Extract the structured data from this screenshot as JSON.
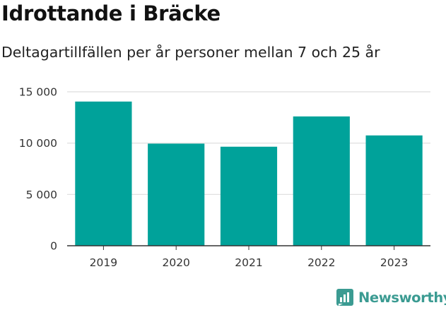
{
  "title": "Idrottande i Bräcke",
  "subtitle": "Deltagartillfällen per år personer mellan 7 och 25 år",
  "brand": {
    "name": "Newsworthy",
    "color": "#3b9b92",
    "icon": "newsworthy-chart-logo-icon"
  },
  "colors": {
    "bar": "#00a29a",
    "grid": "#dddddd",
    "axis": "#333333",
    "text": "#333333"
  },
  "chart_data": {
    "type": "bar",
    "title": "Idrottande i Bräcke",
    "subtitle": "Deltagartillfällen per år personer mellan 7 och 25 år",
    "categories": [
      "2019",
      "2020",
      "2021",
      "2022",
      "2023"
    ],
    "values": [
      14050,
      9950,
      9650,
      12600,
      10750
    ],
    "ylim": [
      0,
      15000
    ],
    "yticks": [
      0,
      5000,
      10000,
      15000
    ],
    "ytick_labels": [
      "0",
      "5 000",
      "10 000",
      "15 000"
    ],
    "grid": true,
    "legend": "none"
  }
}
